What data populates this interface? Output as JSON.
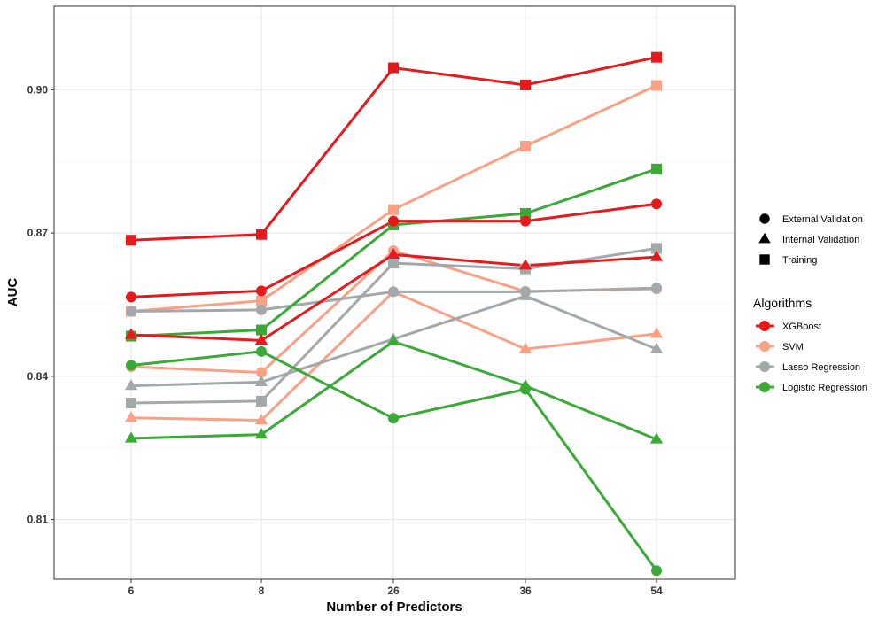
{
  "chart_data": {
    "type": "line",
    "xlabel": "Number of Predictors",
    "ylabel": "AUC",
    "categories": [
      "6",
      "8",
      "26",
      "36",
      "54"
    ],
    "ylim": [
      0.7975,
      0.9175
    ],
    "yticks": [
      "0.81",
      "0.84",
      "0.87",
      "0.90"
    ],
    "grid": true,
    "legend_position": "right",
    "shape_legend": {
      "title": "",
      "items": [
        {
          "label": "External Validation",
          "shape": "circle"
        },
        {
          "label": "Internal Validation",
          "shape": "triangle"
        },
        {
          "label": "Training",
          "shape": "square"
        }
      ]
    },
    "color_legend": {
      "title": "Algorithms",
      "items": [
        {
          "label": "XGBoost",
          "color": "#e41a1c"
        },
        {
          "label": "SVM",
          "color": "#f8a185"
        },
        {
          "label": "Lasso Regression",
          "color": "#a3a9aa"
        },
        {
          "label": "Logistic Regression",
          "color": "#3aa935"
        }
      ]
    },
    "series": [
      {
        "algorithm": "SVM",
        "dataset": "Internal Validation",
        "shape": "triangle",
        "color": "#f8a185",
        "values": [
          0.8313,
          0.8308,
          0.8577,
          0.8457,
          0.8489
        ]
      },
      {
        "algorithm": "SVM",
        "dataset": "External Validation",
        "shape": "circle",
        "color": "#f8a185",
        "values": [
          0.842,
          0.8408,
          0.8663,
          0.8578,
          0.8583
        ]
      },
      {
        "algorithm": "SVM",
        "dataset": "Training",
        "shape": "square",
        "color": "#f8a185",
        "values": [
          0.8536,
          0.8558,
          0.8749,
          0.8882,
          0.9009
        ]
      },
      {
        "algorithm": "Lasso Regression",
        "dataset": "Internal Validation",
        "shape": "triangle",
        "color": "#a3a9aa",
        "values": [
          0.838,
          0.8388,
          0.8478,
          0.8568,
          0.8457
        ]
      },
      {
        "algorithm": "Lasso Regression",
        "dataset": "Training",
        "shape": "square",
        "color": "#a3a9aa",
        "values": [
          0.8344,
          0.8348,
          0.8637,
          0.8625,
          0.8668
        ]
      },
      {
        "algorithm": "Lasso Regression",
        "dataset": "External Validation",
        "shape": "circle",
        "color": "#a3a9aa",
        "values": [
          0.8536,
          0.8539,
          0.8577,
          0.8577,
          0.8585
        ]
      },
      {
        "algorithm": "Logistic Regression",
        "dataset": "Internal Validation",
        "shape": "triangle",
        "color": "#3aa935",
        "values": [
          0.827,
          0.8278,
          0.8473,
          0.838,
          0.8268
        ]
      },
      {
        "algorithm": "Logistic Regression",
        "dataset": "External Validation",
        "shape": "circle",
        "color": "#3aa935",
        "values": [
          0.8423,
          0.8452,
          0.8312,
          0.8373,
          0.7993
        ]
      },
      {
        "algorithm": "Logistic Regression",
        "dataset": "Training",
        "shape": "square",
        "color": "#3aa935",
        "values": [
          0.8484,
          0.8497,
          0.8717,
          0.8741,
          0.8834
        ]
      },
      {
        "algorithm": "XGBoost",
        "dataset": "Internal Validation",
        "shape": "triangle",
        "color": "#e41a1c",
        "values": [
          0.8487,
          0.8475,
          0.8655,
          0.8632,
          0.865
        ]
      },
      {
        "algorithm": "XGBoost",
        "dataset": "External Validation",
        "shape": "circle",
        "color": "#e41a1c",
        "values": [
          0.8566,
          0.8579,
          0.8725,
          0.8725,
          0.8761
        ]
      },
      {
        "algorithm": "XGBoost",
        "dataset": "Training",
        "shape": "square",
        "color": "#e41a1c",
        "values": [
          0.8685,
          0.8697,
          0.9046,
          0.901,
          0.9068
        ]
      }
    ]
  }
}
